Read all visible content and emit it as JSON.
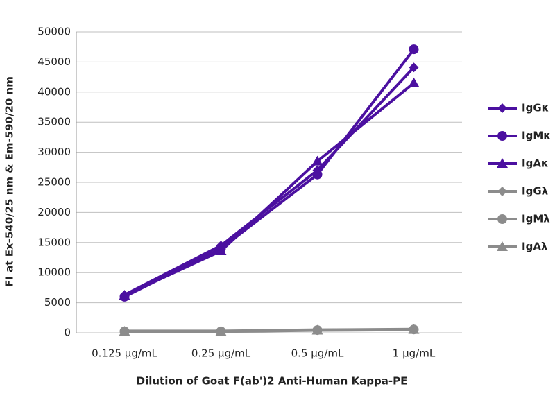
{
  "chart_data": {
    "type": "line",
    "ylabel": "FI at Ex-540/25 nm & Em-590/20 nm",
    "xlabel": "Dilution of Goat F(ab')2 Anti-Human Kappa-PE",
    "categories": [
      "0.125 µg/mL",
      "0.25 µg/mL",
      "0.5 µg/mL",
      "1 µg/mL"
    ],
    "series": [
      {
        "name": "IgGκ",
        "color": "#4b10a0",
        "marker": "diamond",
        "values": [
          6300,
          14500,
          27000,
          44100
        ]
      },
      {
        "name": "IgMκ",
        "color": "#4b10a0",
        "marker": "circle",
        "values": [
          6000,
          14000,
          26300,
          47100
        ]
      },
      {
        "name": "IgAκ",
        "color": "#4b10a0",
        "marker": "triangle",
        "values": [
          6200,
          13600,
          28500,
          41500
        ]
      },
      {
        "name": "IgGλ",
        "color": "#8c8c8c",
        "marker": "diamond",
        "values": [
          300,
          300,
          500,
          600
        ]
      },
      {
        "name": "IgMλ",
        "color": "#8c8c8c",
        "marker": "circle",
        "values": [
          250,
          250,
          450,
          550
        ]
      },
      {
        "name": "IgAλ",
        "color": "#8c8c8c",
        "marker": "triangle",
        "values": [
          200,
          200,
          400,
          500
        ]
      }
    ],
    "ylim": [
      0,
      50000
    ],
    "yticks": [
      0,
      5000,
      10000,
      15000,
      20000,
      25000,
      30000,
      35000,
      40000,
      45000,
      50000
    ],
    "grid": true
  }
}
